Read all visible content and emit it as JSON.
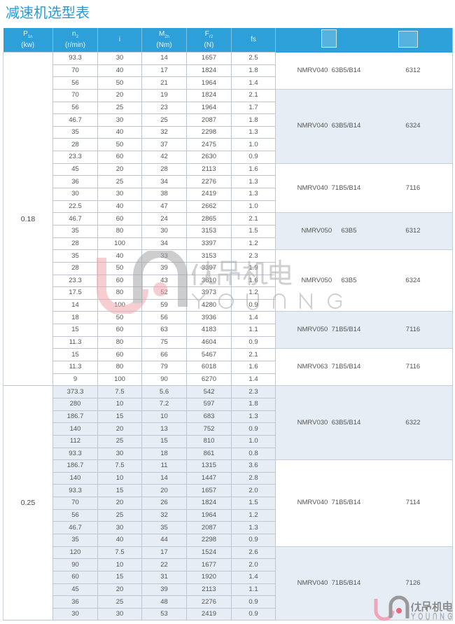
{
  "title": "减速机选型表",
  "headers": [
    {
      "main": "P",
      "sub": "1n",
      "unit": "(kw)"
    },
    {
      "main": "n",
      "sub": "2",
      "unit": "(r/min)"
    },
    {
      "main": "i",
      "sub": "",
      "unit": ""
    },
    {
      "main": "M",
      "sub": "2n",
      "unit": "(Nm)"
    },
    {
      "main": "F",
      "sub": "r2",
      "unit": "(N)"
    },
    {
      "main": "fs",
      "sub": "",
      "unit": ""
    }
  ],
  "header_icons": [
    "gearbox-front-icon",
    "gearbox-side-icon"
  ],
  "watermark": {
    "cn": "优昂机电",
    "en": "YOUANG"
  },
  "colors": {
    "header": "#2d9fd9",
    "title": "#2a9ad6",
    "row_alt": "#e6edf4"
  },
  "power_blocks": [
    {
      "power": "0.18",
      "groups": [
        {
          "model": "NMRV040  63B5/B14",
          "code": "6312",
          "rows": [
            [
              "93.3",
              "30",
              "14",
              "1657",
              "2.5"
            ],
            [
              "70",
              "40",
              "17",
              "1824",
              "1.8"
            ],
            [
              "56",
              "50",
              "21",
              "1964",
              "1.4"
            ]
          ]
        },
        {
          "model": "NMRV040  63B5/B14",
          "code": "6324",
          "rows": [
            [
              "70",
              "20",
              "19",
              "1824",
              "2.1"
            ],
            [
              "56",
              "25",
              "23",
              "1964",
              "1.7"
            ],
            [
              "46.7",
              "30",
              "25",
              "2087",
              "1.8"
            ],
            [
              "35",
              "40",
              "32",
              "2298",
              "1.3"
            ],
            [
              "28",
              "50",
              "37",
              "2475",
              "1.0"
            ],
            [
              "23.3",
              "60",
              "42",
              "2630",
              "0.9"
            ]
          ]
        },
        {
          "model": "NMRV040  71B5/B14",
          "code": "7116",
          "rows": [
            [
              "45",
              "20",
              "28",
              "2113",
              "1.6"
            ],
            [
              "36",
              "25",
              "34",
              "2276",
              "1.3"
            ],
            [
              "30",
              "30",
              "38",
              "2419",
              "1.3"
            ],
            [
              "22.5",
              "40",
              "47",
              "2662",
              "1.0"
            ]
          ]
        },
        {
          "model": "NMRV050     63B5",
          "code": "6312",
          "rows": [
            [
              "46.7",
              "60",
              "24",
              "2865",
              "2.1"
            ],
            [
              "35",
              "80",
              "30",
              "3153",
              "1.5"
            ],
            [
              "28",
              "100",
              "34",
              "3397",
              "1.2"
            ]
          ]
        },
        {
          "model": "NMRV050     63B5",
          "code": "6324",
          "rows": [
            [
              "35",
              "40",
              "33",
              "3153",
              "2.3"
            ],
            [
              "28",
              "50",
              "39",
              "3397",
              "1.9"
            ],
            [
              "23.3",
              "60",
              "43",
              "3610",
              "1.6"
            ],
            [
              "17.5",
              "80",
              "52",
              "3973",
              "1.2"
            ],
            [
              "14",
              "100",
              "59",
              "4280",
              "0.9"
            ]
          ]
        },
        {
          "model": "NMRV050  71B5/B14",
          "code": "7116",
          "rows": [
            [
              "18",
              "50",
              "56",
              "3936",
              "1.4"
            ],
            [
              "15",
              "60",
              "63",
              "4183",
              "1.1"
            ],
            [
              "11.3",
              "80",
              "75",
              "4604",
              "0.9"
            ]
          ]
        },
        {
          "model": "NMRV063  71B5/B14",
          "code": "7116",
          "rows": [
            [
              "15",
              "60",
              "66",
              "5467",
              "2.1"
            ],
            [
              "11.3",
              "80",
              "79",
              "6018",
              "1.6"
            ],
            [
              "9",
              "100",
              "90",
              "6270",
              "1.4"
            ]
          ]
        }
      ]
    },
    {
      "power": "0.25",
      "groups": [
        {
          "model": "NMRV030  63B5/B14",
          "code": "6322",
          "rows": [
            [
              "373.3",
              "7.5",
              "5.6",
              "542",
              "2.3"
            ],
            [
              "280",
              "10",
              "7.2",
              "597",
              "1.8"
            ],
            [
              "186.7",
              "15",
              "10",
              "683",
              "1.3"
            ],
            [
              "140",
              "20",
              "13",
              "752",
              "0.9"
            ],
            [
              "112",
              "25",
              "15",
              "810",
              "1.0"
            ],
            [
              "93.3",
              "30",
              "18",
              "861",
              "0.8"
            ]
          ]
        },
        {
          "model": "NMRV040  71B5/B14",
          "code": "7114",
          "rows": [
            [
              "186.7",
              "7.5",
              "11",
              "1315",
              "3.6"
            ],
            [
              "140",
              "10",
              "14",
              "1447",
              "2.8"
            ],
            [
              "93.3",
              "15",
              "20",
              "1657",
              "2.0"
            ],
            [
              "70",
              "20",
              "26",
              "1824",
              "1.5"
            ],
            [
              "56",
              "25",
              "32",
              "1964",
              "1.2"
            ],
            [
              "46.7",
              "30",
              "35",
              "2087",
              "1.3"
            ],
            [
              "35",
              "40",
              "44",
              "2298",
              "0.9"
            ]
          ]
        },
        {
          "model": "NMRV040  71B5/B14",
          "code": "7126",
          "rows": [
            [
              "120",
              "7.5",
              "17",
              "1524",
              "2.6"
            ],
            [
              "90",
              "10",
              "22",
              "1677",
              "2.0"
            ],
            [
              "60",
              "15",
              "31",
              "1920",
              "1.4"
            ],
            [
              "45",
              "20",
              "39",
              "2113",
              "1.1"
            ],
            [
              "36",
              "25",
              "48",
              "2276",
              "0.9"
            ],
            [
              "30",
              "30",
              "53",
              "2419",
              "0.9"
            ]
          ]
        }
      ]
    }
  ]
}
